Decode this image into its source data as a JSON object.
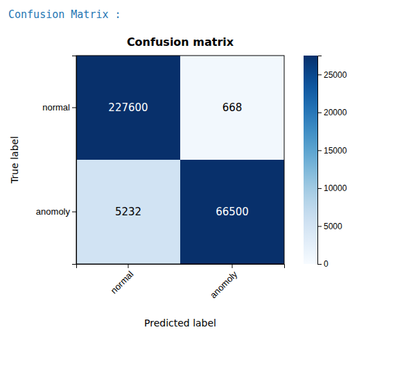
{
  "chart_data": {
    "type": "heatmap",
    "title": "Confusion matrix",
    "subtitle": "Confusion Matrix :",
    "categories": [
      "normal",
      "anomoly"
    ],
    "matrix": [
      [
        227600,
        668
      ],
      [
        5232,
        66500
      ]
    ],
    "x_label": "Predicted label",
    "y_label": "True label",
    "colorbar_range": [
      0,
      27500
    ],
    "colorbar_ticks": [
      0,
      5000,
      10000,
      15000,
      20000,
      25000
    ]
  }
}
